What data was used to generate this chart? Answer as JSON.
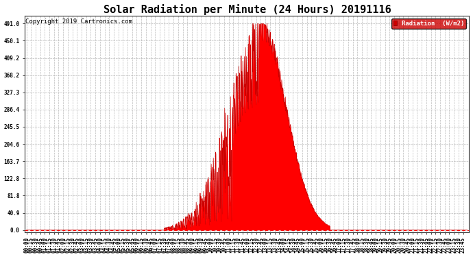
{
  "title": "Solar Radiation per Minute (24 Hours) 20191116",
  "copyright_text": "Copyright 2019 Cartronics.com",
  "legend_label": "Radiation  (W/m2)",
  "yticks": [
    0.0,
    40.9,
    81.8,
    122.8,
    163.7,
    204.6,
    245.5,
    286.4,
    327.3,
    368.2,
    409.2,
    450.1,
    491.0
  ],
  "ymax": 510.0,
  "ymin": -5.0,
  "fill_color": "#FF0000",
  "line_color": "#CC0000",
  "background_color": "#FFFFFF",
  "grid_color": "#AAAAAA",
  "title_fontsize": 11,
  "copyright_fontsize": 6.5,
  "axis_label_fontsize": 5.5,
  "total_minutes": 1440,
  "x_tick_step": 15,
  "legend_bg": "#CC0000",
  "legend_text_color": "#FFFFFF",
  "sunrise": 450,
  "sunset": 990,
  "peak_minute": 770,
  "peak_value": 491.0,
  "figwidth": 6.9,
  "figheight": 3.75,
  "dpi": 100
}
